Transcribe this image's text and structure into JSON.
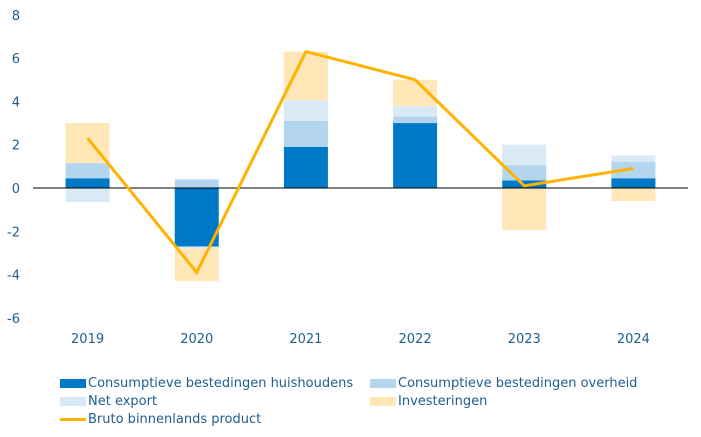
{
  "chart_data": {
    "type": "bar",
    "stacked": true,
    "title": "",
    "xlabel": "",
    "ylabel": "",
    "categories": [
      "2019",
      "2020",
      "2021",
      "2022",
      "2023",
      "2024"
    ],
    "ylim": [
      -6,
      8
    ],
    "yticks": [
      8,
      6,
      4,
      2,
      0,
      -2,
      -4,
      -6
    ],
    "grid": false,
    "legend_position": "bottom",
    "series": [
      {
        "name": "Consumptieve bestedingen huishoudens",
        "type": "bar",
        "color": "#0078c8",
        "values": [
          0.45,
          -2.7,
          1.9,
          3.0,
          0.35,
          0.45
        ]
      },
      {
        "name": "Consumptieve bestedingen overheid",
        "type": "bar",
        "color": "#b3d6ee",
        "values": [
          0.7,
          0.4,
          1.2,
          0.3,
          0.7,
          0.75
        ]
      },
      {
        "name": "Net export",
        "type": "bar",
        "color": "#d9e9f6",
        "values": [
          -0.65,
          -0.1,
          0.95,
          0.5,
          0.95,
          0.3
        ]
      },
      {
        "name": "Investeringen",
        "type": "bar",
        "color": "#ffe7b8",
        "values": [
          1.85,
          -1.5,
          2.25,
          1.2,
          -1.95,
          -0.6
        ]
      },
      {
        "name": "Bruto binnenlands product",
        "type": "line",
        "color": "#ffb300",
        "values": [
          2.3,
          -3.9,
          6.3,
          5.0,
          0.1,
          0.9
        ]
      }
    ]
  },
  "legend": {
    "items": [
      {
        "label": "Consumptieve bestedingen huishoudens"
      },
      {
        "label": "Consumptieve bestedingen overheid"
      },
      {
        "label": "Net export"
      },
      {
        "label": "Investeringen"
      },
      {
        "label": "Bruto binnenlands product"
      }
    ]
  }
}
